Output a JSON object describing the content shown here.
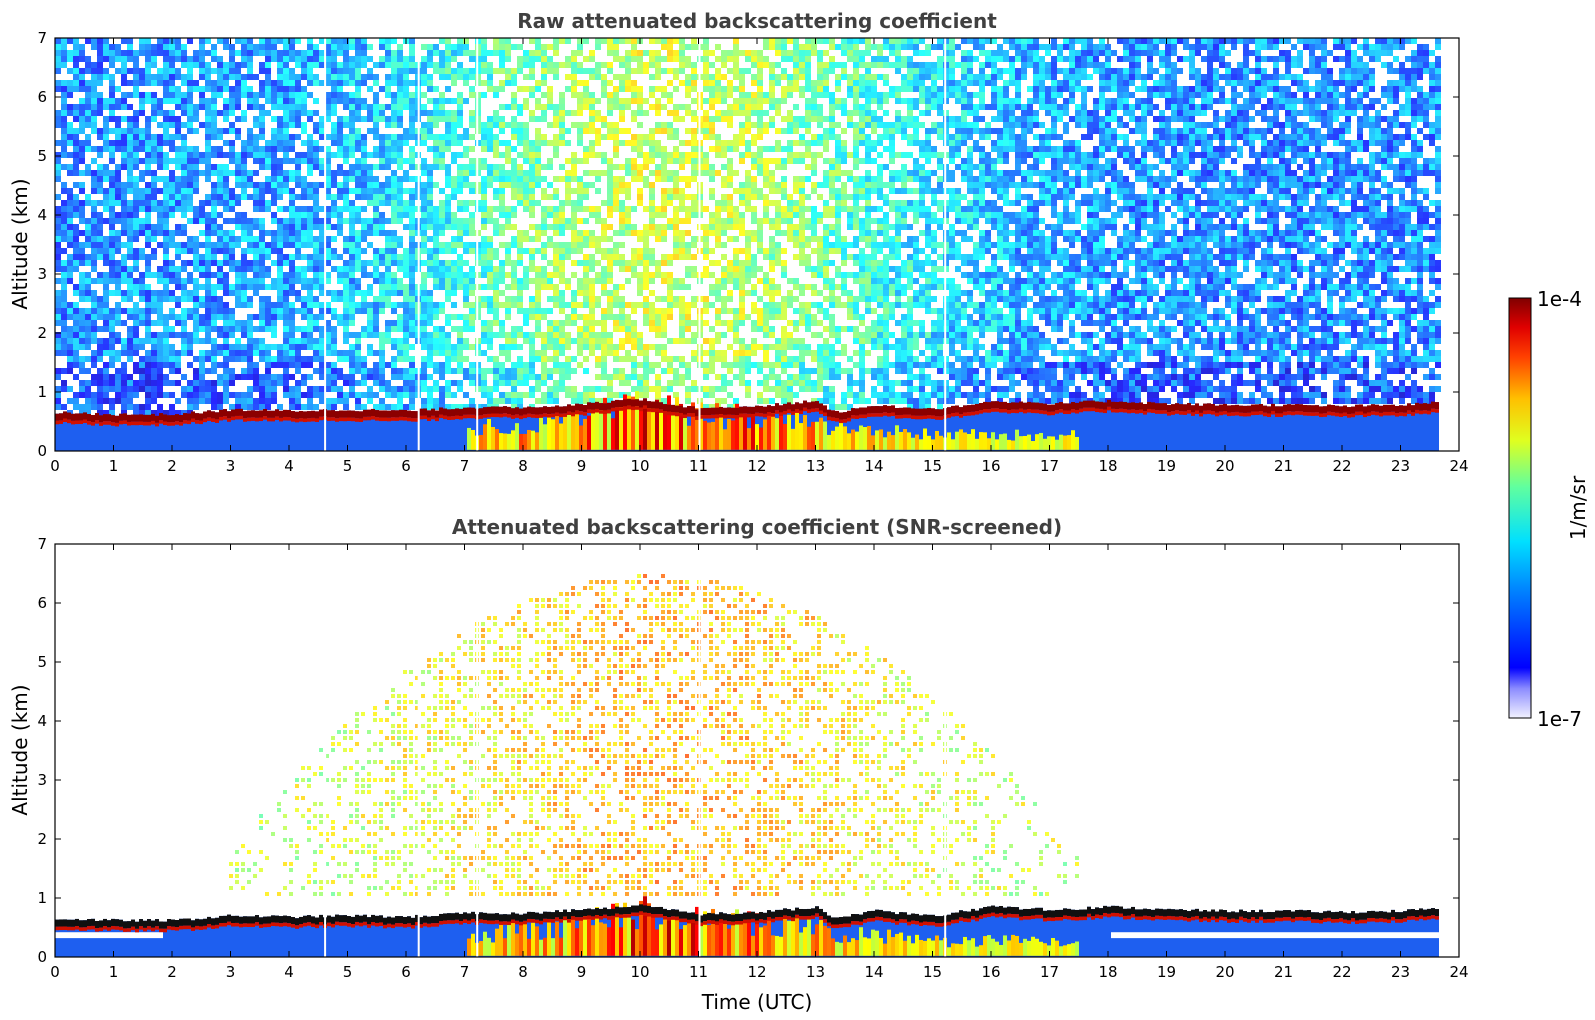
{
  "chart_data": [
    {
      "type": "heatmap",
      "title": "Raw attenuated backscattering coefficient",
      "xlabel": "",
      "ylabel": "Altitude (km)",
      "xlim": [
        0,
        24
      ],
      "ylim": [
        0,
        7
      ],
      "x_ticks": [
        "0",
        "1",
        "2",
        "3",
        "4",
        "5",
        "6",
        "7",
        "8",
        "9",
        "10",
        "11",
        "12",
        "13",
        "14",
        "15",
        "16",
        "17",
        "18",
        "19",
        "20",
        "21",
        "22",
        "23",
        "24"
      ],
      "y_ticks": [
        "0",
        "1",
        "2",
        "3",
        "4",
        "5",
        "6",
        "7"
      ],
      "data_end_hour": 23.65,
      "layer_top_km": [
        [
          0,
          0.65
        ],
        [
          1,
          0.62
        ],
        [
          2,
          0.62
        ],
        [
          3,
          0.7
        ],
        [
          4,
          0.68
        ],
        [
          5,
          0.7
        ],
        [
          6,
          0.68
        ],
        [
          7,
          0.74
        ],
        [
          8,
          0.74
        ],
        [
          9,
          0.8
        ],
        [
          10,
          0.88
        ],
        [
          11,
          0.72
        ],
        [
          12,
          0.76
        ],
        [
          13,
          0.85
        ],
        [
          13.3,
          0.65
        ],
        [
          14,
          0.78
        ],
        [
          15,
          0.7
        ],
        [
          16,
          0.85
        ],
        [
          17,
          0.8
        ],
        [
          18,
          0.85
        ],
        [
          19,
          0.8
        ],
        [
          20,
          0.78
        ],
        [
          21,
          0.78
        ],
        [
          22,
          0.76
        ],
        [
          23,
          0.78
        ],
        [
          23.6,
          0.82
        ]
      ],
      "noise_profile": "diurnal solar background, maximum near 10-11 UTC"
    },
    {
      "type": "heatmap",
      "title": "Attenuated backscattering coefficient (SNR-screened)",
      "xlabel": "Time (UTC)",
      "ylabel": "Altitude (km)",
      "xlim": [
        0,
        24
      ],
      "ylim": [
        0,
        7
      ],
      "x_ticks": [
        "0",
        "1",
        "2",
        "3",
        "4",
        "5",
        "6",
        "7",
        "8",
        "9",
        "10",
        "11",
        "12",
        "13",
        "14",
        "15",
        "16",
        "17",
        "18",
        "19",
        "20",
        "21",
        "22",
        "23",
        "24"
      ],
      "y_ticks": [
        "0",
        "1",
        "2",
        "3",
        "4",
        "5",
        "6",
        "7"
      ],
      "data_end_hour": 23.65,
      "screened_region_hours": [
        2.9,
        17.6
      ],
      "layer_top_km": [
        [
          0,
          0.65
        ],
        [
          1,
          0.62
        ],
        [
          2,
          0.62
        ],
        [
          3,
          0.7
        ],
        [
          4,
          0.68
        ],
        [
          5,
          0.7
        ],
        [
          6,
          0.68
        ],
        [
          7,
          0.74
        ],
        [
          8,
          0.74
        ],
        [
          9,
          0.8
        ],
        [
          10,
          0.88
        ],
        [
          11,
          0.72
        ],
        [
          12,
          0.76
        ],
        [
          13,
          0.85
        ],
        [
          13.3,
          0.65
        ],
        [
          14,
          0.78
        ],
        [
          15,
          0.7
        ],
        [
          16,
          0.85
        ],
        [
          17,
          0.8
        ],
        [
          18,
          0.85
        ],
        [
          19,
          0.8
        ],
        [
          20,
          0.78
        ],
        [
          21,
          0.78
        ],
        [
          22,
          0.76
        ],
        [
          23,
          0.78
        ],
        [
          23.6,
          0.82
        ]
      ]
    }
  ],
  "colorbar": {
    "max_label": "1e-4",
    "min_label": "1e-7",
    "unit_label": "1/m/sr",
    "scale": "log",
    "colormap": "jet"
  }
}
